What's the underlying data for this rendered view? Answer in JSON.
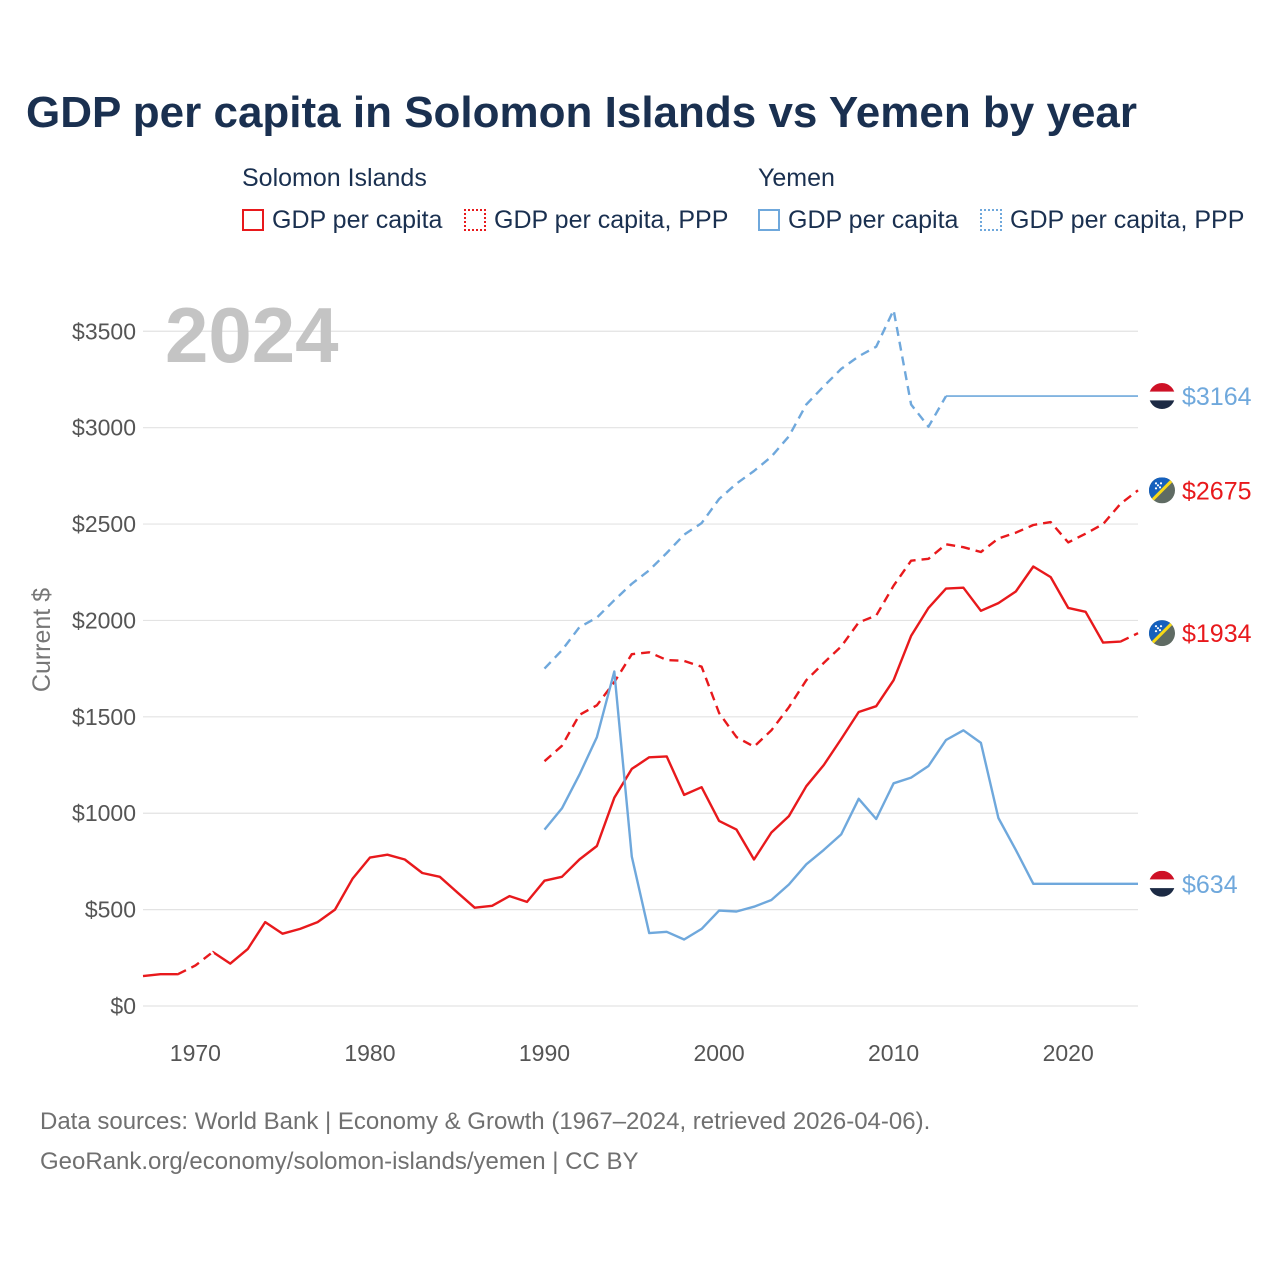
{
  "colors": {
    "solomon": "#e8191c",
    "yemen": "#6fa8dc",
    "grid": "#e3e3e3",
    "title": "#1a3050",
    "year": "#c4c4c4"
  },
  "legend": {
    "groups": [
      {
        "title": "Solomon Islands",
        "items": [
          {
            "label": "GDP per capita",
            "style": "solid",
            "color": "#e8191c"
          },
          {
            "label": "GDP per capita, PPP",
            "style": "dotted",
            "color": "#e8191c"
          }
        ]
      },
      {
        "title": "Yemen",
        "items": [
          {
            "label": "GDP per capita",
            "style": "solid",
            "color": "#6fa8dc"
          },
          {
            "label": "GDP per capita, PPP",
            "style": "dotted",
            "color": "#6fa8dc"
          }
        ]
      }
    ]
  },
  "footer": {
    "source": "Data sources: World Bank | Economy & Growth (1967–2024, retrieved 2026-04-06).",
    "url": "GeoRank.org/economy/solomon-islands/yemen | CC BY"
  },
  "chart_data": {
    "type": "line",
    "title": "GDP per capita in Solomon Islands vs Yemen by year",
    "year_label": "2024",
    "xlabel": "",
    "ylabel": "Current $",
    "xlim": [
      1967,
      2024
    ],
    "ylim": [
      0,
      3600
    ],
    "x_ticks": [
      1970,
      1980,
      1990,
      2000,
      2010,
      2020
    ],
    "y_ticks": [
      0,
      500,
      1000,
      1500,
      2000,
      2500,
      3000,
      3500
    ],
    "y_tick_labels": [
      "$0",
      "$500",
      "$1000",
      "$1500",
      "$2000",
      "$2500",
      "$3000",
      "$3500"
    ],
    "grid": true,
    "series": [
      {
        "id": "solomon-gdp",
        "name": "Solomon Islands GDP per capita",
        "color": "#e8191c",
        "style": "solid",
        "end_label": "$1934",
        "end_flag": "solomon",
        "x": [
          1967,
          1968,
          1969,
          1970,
          1971,
          1972,
          1973,
          1974,
          1975,
          1976,
          1977,
          1978,
          1979,
          1980,
          1981,
          1982,
          1983,
          1984,
          1985,
          1986,
          1987,
          1988,
          1989,
          1990,
          1991,
          1992,
          1993,
          1994,
          1995,
          1996,
          1997,
          1998,
          1999,
          2000,
          2001,
          2002,
          2003,
          2004,
          2005,
          2006,
          2007,
          2008,
          2009,
          2010,
          2011,
          2012,
          2013,
          2014,
          2015,
          2016,
          2017,
          2018,
          2019,
          2020,
          2021,
          2022,
          2023,
          2024
        ],
        "y": [
          155,
          165,
          165,
          210,
          280,
          220,
          295,
          435,
          375,
          400,
          435,
          500,
          660,
          770,
          785,
          760,
          690,
          670,
          590,
          510,
          520,
          570,
          540,
          650,
          670,
          760,
          830,
          1080,
          1230,
          1290,
          1295,
          1095,
          1135,
          960,
          915,
          760,
          900,
          985,
          1140,
          1250,
          1385,
          1525,
          1555,
          1690,
          1920,
          2065,
          2165,
          2170,
          2050,
          2090,
          2150,
          2280,
          2225,
          2065,
          2045,
          1885,
          1890,
          1934
        ],
        "dashed_ranges": [
          [
            1969,
            1971
          ],
          [
            2023,
            2024
          ]
        ]
      },
      {
        "id": "solomon-ppp",
        "name": "Solomon Islands GDP per capita, PPP",
        "color": "#e8191c",
        "style": "dashed",
        "end_label": "$2675",
        "end_flag": "solomon",
        "x": [
          1990,
          1991,
          1992,
          1993,
          1994,
          1995,
          1996,
          1997,
          1998,
          1999,
          2000,
          2001,
          2002,
          2003,
          2004,
          2005,
          2006,
          2007,
          2008,
          2009,
          2010,
          2011,
          2012,
          2013,
          2014,
          2015,
          2016,
          2017,
          2018,
          2019,
          2020,
          2021,
          2022,
          2023,
          2024
        ],
        "y": [
          1270,
          1350,
          1510,
          1560,
          1680,
          1825,
          1835,
          1795,
          1790,
          1760,
          1520,
          1395,
          1345,
          1430,
          1550,
          1690,
          1780,
          1865,
          1990,
          2025,
          2180,
          2310,
          2320,
          2395,
          2380,
          2355,
          2425,
          2455,
          2495,
          2510,
          2405,
          2450,
          2500,
          2605,
          2675
        ]
      },
      {
        "id": "yemen-gdp",
        "name": "Yemen GDP per capita",
        "color": "#6fa8dc",
        "style": "solid",
        "end_label": "$634",
        "end_flag": "yemen",
        "x": [
          1990,
          1991,
          1992,
          1993,
          1994,
          1995,
          1996,
          1997,
          1998,
          1999,
          2000,
          2001,
          2002,
          2003,
          2004,
          2005,
          2006,
          2007,
          2008,
          2009,
          2010,
          2011,
          2012,
          2013,
          2014,
          2015,
          2016,
          2017,
          2018,
          2024
        ],
        "y": [
          915,
          1025,
          1200,
          1395,
          1735,
          775,
          378,
          385,
          345,
          400,
          495,
          490,
          515,
          550,
          630,
          735,
          810,
          890,
          1075,
          970,
          1155,
          1185,
          1245,
          1380,
          1430,
          1365,
          975,
          810,
          634,
          634
        ]
      },
      {
        "id": "yemen-ppp",
        "name": "Yemen GDP per capita, PPP",
        "color": "#6fa8dc",
        "style": "dashed",
        "end_label": "$3164",
        "end_flag": "yemen",
        "x": [
          1990,
          1991,
          1992,
          1993,
          1994,
          1995,
          1996,
          1997,
          1998,
          1999,
          2000,
          2001,
          2002,
          2003,
          2004,
          2005,
          2006,
          2007,
          2008,
          2009,
          2010,
          2011,
          2012,
          2013,
          2024
        ],
        "y": [
          1750,
          1845,
          1965,
          2015,
          2105,
          2190,
          2260,
          2350,
          2445,
          2505,
          2630,
          2710,
          2775,
          2850,
          2955,
          3120,
          3215,
          3305,
          3370,
          3420,
          3610,
          3120,
          3005,
          3164,
          3164
        ],
        "solid_after": 2013
      }
    ]
  }
}
